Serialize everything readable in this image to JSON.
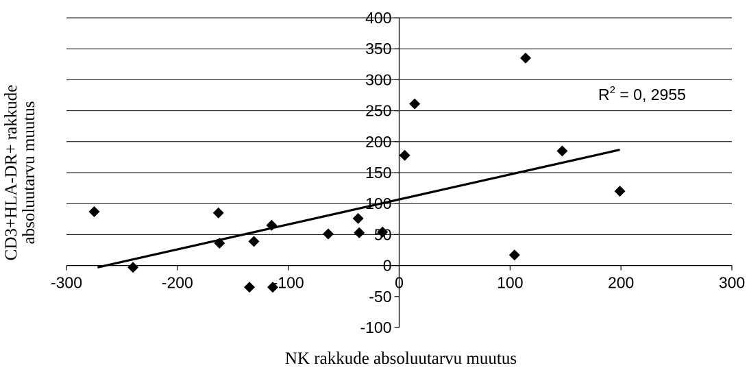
{
  "chart_data": {
    "type": "scatter",
    "xlabel": "NK rakkude absoluutarvu muutus",
    "ylabel_lines": [
      "CD3+HLA-DR+ rakkude",
      "absoluutarvu  muutus"
    ],
    "xlim": [
      -300,
      300
    ],
    "ylim": [
      -100,
      400
    ],
    "x_ticks": [
      -300,
      -200,
      -100,
      0,
      100,
      200,
      300
    ],
    "y_ticks": [
      -100,
      -50,
      0,
      50,
      100,
      150,
      200,
      250,
      300,
      350,
      400
    ],
    "x_tick_labels": [
      "-300",
      "-200",
      "-100",
      "0",
      "100",
      "200",
      "300"
    ],
    "y_tick_labels": [
      "-100",
      "-50",
      "0",
      "50",
      "100",
      "150",
      "200",
      "250",
      "300",
      "350",
      "400"
    ],
    "grid": "horizontal",
    "marker": "diamond",
    "marker_color": "#000000",
    "points": [
      {
        "x": -275,
        "y": 87
      },
      {
        "x": -240,
        "y": -3
      },
      {
        "x": -163,
        "y": 85
      },
      {
        "x": -162,
        "y": 36
      },
      {
        "x": -135,
        "y": -35
      },
      {
        "x": -131,
        "y": 39
      },
      {
        "x": -115,
        "y": 65
      },
      {
        "x": -114,
        "y": -35
      },
      {
        "x": -64,
        "y": 51
      },
      {
        "x": -37,
        "y": 76
      },
      {
        "x": -36,
        "y": 53
      },
      {
        "x": -15,
        "y": 54
      },
      {
        "x": 5,
        "y": 178
      },
      {
        "x": 14,
        "y": 261
      },
      {
        "x": 104,
        "y": 17
      },
      {
        "x": 114,
        "y": 335
      },
      {
        "x": 147,
        "y": 185
      },
      {
        "x": 199,
        "y": 120
      }
    ],
    "trendline": {
      "x": [
        -272,
        199
      ],
      "y": [
        -3,
        187
      ]
    },
    "r2_label_base": "R",
    "r2_label_sup": "2",
    "r2_label_rest": " = 0, 2955"
  }
}
